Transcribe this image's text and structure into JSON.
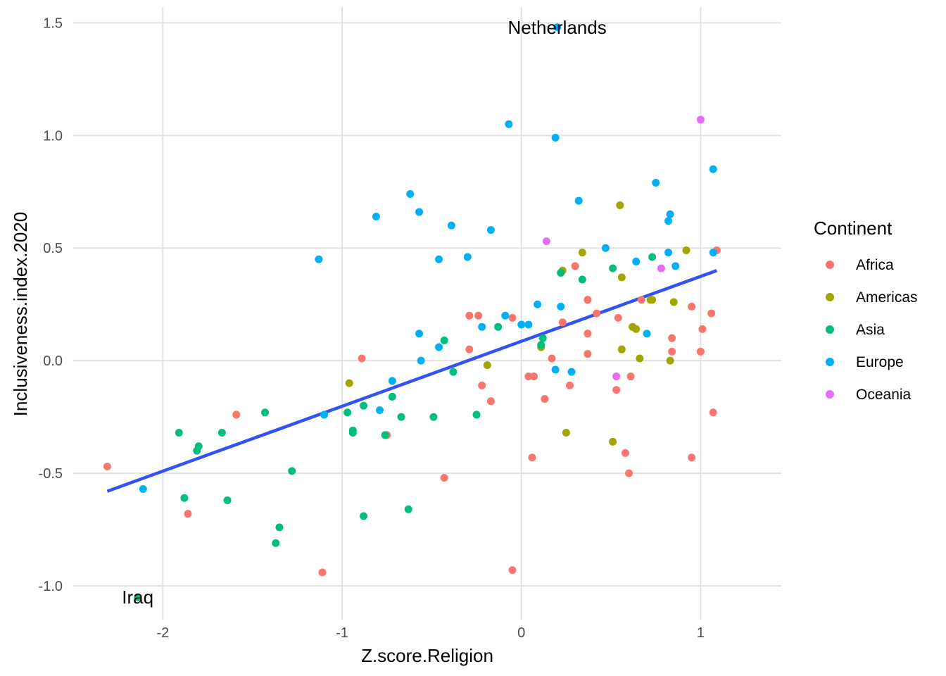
{
  "chart_data": {
    "type": "scatter",
    "title": "",
    "xlabel": "Z.score.Religion",
    "ylabel": "Inclusiveness.index.2020",
    "xlim": [
      -2.5,
      1.45
    ],
    "ylim": [
      -1.15,
      1.57
    ],
    "xticks": [
      -2,
      -1,
      0,
      1
    ],
    "yticks": [
      -1.0,
      -0.5,
      0.0,
      0.5,
      1.0,
      1.5
    ],
    "xtick_labels": [
      "-2",
      "-1",
      "0",
      "1"
    ],
    "ytick_labels": [
      "-1.0",
      "-0.5",
      "0.0",
      "0.5",
      "1.0",
      "1.5"
    ],
    "grid": true,
    "legend": {
      "title": "Continent",
      "position": "right"
    },
    "colors": {
      "Africa": "#F8766D",
      "Americas": "#A3A500",
      "Asia": "#00BF7D",
      "Europe": "#00B0F6",
      "Oceania": "#E76BF3",
      "trend": "#3352F5"
    },
    "series": [
      {
        "name": "Africa",
        "points": [
          [
            -2.31,
            -0.47
          ],
          [
            -1.86,
            -0.68
          ],
          [
            -1.59,
            -0.24
          ],
          [
            -1.11,
            -0.94
          ],
          [
            -0.89,
            0.01
          ],
          [
            -0.75,
            -0.33
          ],
          [
            -0.43,
            -0.52
          ],
          [
            -0.29,
            0.2
          ],
          [
            -0.29,
            0.05
          ],
          [
            -0.24,
            0.2
          ],
          [
            -0.22,
            -0.11
          ],
          [
            -0.17,
            -0.18
          ],
          [
            -0.05,
            0.19
          ],
          [
            -0.05,
            -0.93
          ],
          [
            0.04,
            -0.07
          ],
          [
            0.06,
            -0.43
          ],
          [
            0.07,
            -0.07
          ],
          [
            0.13,
            -0.17
          ],
          [
            0.17,
            0.01
          ],
          [
            0.23,
            0.17
          ],
          [
            0.27,
            -0.11
          ],
          [
            0.3,
            0.42
          ],
          [
            0.37,
            0.27
          ],
          [
            0.37,
            0.12
          ],
          [
            0.37,
            0.03
          ],
          [
            0.42,
            0.21
          ],
          [
            0.53,
            -0.13
          ],
          [
            0.54,
            0.19
          ],
          [
            0.58,
            -0.41
          ],
          [
            0.6,
            -0.5
          ],
          [
            0.61,
            -0.07
          ],
          [
            0.67,
            0.27
          ],
          [
            0.84,
            0.1
          ],
          [
            0.84,
            0.04
          ],
          [
            0.95,
            0.24
          ],
          [
            0.95,
            -0.43
          ],
          [
            1.0,
            0.04
          ],
          [
            1.01,
            0.14
          ],
          [
            1.06,
            0.21
          ],
          [
            1.07,
            -0.23
          ],
          [
            1.09,
            0.49
          ]
        ]
      },
      {
        "name": "Americas",
        "points": [
          [
            -0.96,
            -0.1
          ],
          [
            -0.19,
            -0.02
          ],
          [
            0.11,
            0.06
          ],
          [
            0.23,
            0.4
          ],
          [
            0.25,
            -0.32
          ],
          [
            0.34,
            0.48
          ],
          [
            0.51,
            -0.36
          ],
          [
            0.55,
            0.69
          ],
          [
            0.56,
            0.37
          ],
          [
            0.56,
            0.05
          ],
          [
            0.62,
            0.15
          ],
          [
            0.64,
            0.14
          ],
          [
            0.66,
            0.01
          ],
          [
            0.72,
            0.27
          ],
          [
            0.73,
            0.27
          ],
          [
            0.83,
            0.0
          ],
          [
            0.85,
            0.26
          ],
          [
            0.92,
            0.49
          ]
        ]
      },
      {
        "name": "Asia",
        "points": [
          [
            -2.14,
            -1.05
          ],
          [
            -1.91,
            -0.32
          ],
          [
            -1.88,
            -0.61
          ],
          [
            -1.81,
            -0.4
          ],
          [
            -1.8,
            -0.38
          ],
          [
            -1.67,
            -0.32
          ],
          [
            -1.64,
            -0.62
          ],
          [
            -1.43,
            -0.23
          ],
          [
            -1.37,
            -0.81
          ],
          [
            -1.35,
            -0.74
          ],
          [
            -1.28,
            -0.49
          ],
          [
            -0.97,
            -0.23
          ],
          [
            -0.94,
            -0.31
          ],
          [
            -0.94,
            -0.32
          ],
          [
            -0.88,
            -0.69
          ],
          [
            -0.88,
            -0.2
          ],
          [
            -0.76,
            -0.33
          ],
          [
            -0.72,
            -0.16
          ],
          [
            -0.67,
            -0.25
          ],
          [
            -0.63,
            -0.66
          ],
          [
            -0.49,
            -0.25
          ],
          [
            -0.43,
            0.09
          ],
          [
            -0.38,
            -0.05
          ],
          [
            -0.25,
            -0.24
          ],
          [
            -0.13,
            0.15
          ],
          [
            0.11,
            0.07
          ],
          [
            0.12,
            0.1
          ],
          [
            0.22,
            0.39
          ],
          [
            0.34,
            0.36
          ],
          [
            0.51,
            0.41
          ],
          [
            0.73,
            0.46
          ]
        ]
      },
      {
        "name": "Europe",
        "points": [
          [
            -2.11,
            -0.57
          ],
          [
            -1.13,
            0.45
          ],
          [
            -1.1,
            -0.24
          ],
          [
            -0.81,
            0.64
          ],
          [
            -0.79,
            -0.22
          ],
          [
            -0.72,
            -0.09
          ],
          [
            -0.62,
            0.74
          ],
          [
            -0.57,
            0.66
          ],
          [
            -0.57,
            0.12
          ],
          [
            -0.56,
            0.0
          ],
          [
            -0.46,
            0.45
          ],
          [
            -0.46,
            0.06
          ],
          [
            -0.39,
            0.6
          ],
          [
            -0.3,
            0.46
          ],
          [
            -0.22,
            0.15
          ],
          [
            -0.17,
            0.58
          ],
          [
            -0.09,
            0.2
          ],
          [
            -0.07,
            1.05
          ],
          [
            0.0,
            0.16
          ],
          [
            0.04,
            0.16
          ],
          [
            0.09,
            0.25
          ],
          [
            0.19,
            0.99
          ],
          [
            0.19,
            -0.04
          ],
          [
            0.2,
            1.48
          ],
          [
            0.22,
            0.24
          ],
          [
            0.28,
            -0.05
          ],
          [
            0.32,
            0.71
          ],
          [
            0.47,
            0.5
          ],
          [
            0.64,
            0.44
          ],
          [
            0.7,
            0.12
          ],
          [
            0.75,
            0.79
          ],
          [
            0.82,
            0.62
          ],
          [
            0.82,
            0.48
          ],
          [
            0.83,
            0.65
          ],
          [
            0.86,
            0.42
          ],
          [
            1.07,
            0.48
          ],
          [
            1.07,
            0.85
          ]
        ]
      },
      {
        "name": "Oceania",
        "points": [
          [
            0.14,
            0.53
          ],
          [
            0.53,
            -0.07
          ],
          [
            0.78,
            0.41
          ],
          [
            1.0,
            1.07
          ]
        ]
      }
    ],
    "trend_line": {
      "x": [
        -2.31,
        1.09
      ],
      "y": [
        -0.58,
        0.4
      ]
    },
    "annotations": [
      {
        "text": "Netherlands",
        "x": 0.2,
        "y": 1.48
      },
      {
        "text": "Iraq",
        "x": -2.14,
        "y": -1.05
      }
    ]
  }
}
